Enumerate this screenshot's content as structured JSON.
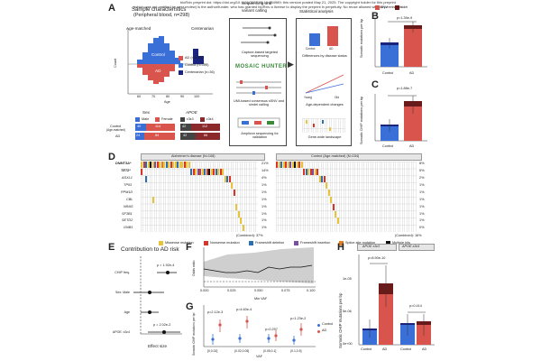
{
  "preprint": {
    "line1": "bioRxiv preprint doi: https://doi.org/10.1101/2025.05.19.654989; this version posted May 21, 2025. The copyright holder for this preprint",
    "line2": "(which was not certified by peer review) is the author/funder, who has granted bioRxiv a license to display the preprint in perpetuity. No reuse allowed without permission."
  },
  "panel_labels": [
    "A",
    "B",
    "C",
    "D",
    "E",
    "F",
    "G",
    "H"
  ],
  "panelA": {
    "title": "Sample characteristics",
    "subtitle": "(Peripheral blood, n=298)",
    "age_matched": "Age-matched",
    "centenarian": "Centenarian",
    "control_lbl": "Control",
    "ad_lbl": "AD",
    "ylabel": "Count",
    "xlabel": "Age",
    "x_ticks": [
      "60",
      "70",
      "80",
      "90",
      "100"
    ],
    "legend": [
      "AD (n=108)",
      "Control (n=154)",
      "Centenarian (n=36)"
    ],
    "sex_title": "Sex",
    "sex_legend": [
      "Male",
      "Female"
    ],
    "apoe_title": "APOE",
    "apoe_legend": [
      "ε3ε3",
      "ε3ε4"
    ],
    "row_labels": [
      "Control",
      "(Age-matched)",
      "AD"
    ],
    "sex_counts": [
      [
        "40",
        "114"
      ],
      [
        "24",
        "84"
      ]
    ],
    "apoe_counts": [
      [
        "42",
        "112"
      ],
      [
        "42",
        "66"
      ]
    ],
    "flow_head1": "Sequencing and",
    "flow_head1b": "variant calling",
    "flow_head2": "Statistical analysis",
    "flow_steps": [
      "Capture-based targeted sequencing",
      "UMI-based consensus sSNV and sindel calling",
      "Amplicon sequencing for validation"
    ],
    "stat_steps": [
      "Differences by disease status",
      "Age-dependent changes",
      "Gene-wide landscape"
    ],
    "stat_x": [
      "Control",
      "AD"
    ],
    "stat_age": [
      "Young",
      "Old"
    ],
    "logo": "MOSAIC HUNTER"
  },
  "panelB": {
    "ylabel": "Somatic mutations per bp",
    "pval": "p=1.35e-9",
    "legend": [
      "SNV",
      "Indel"
    ],
    "categories": [
      "Control",
      "AD"
    ]
  },
  "panelC": {
    "ylabel": "Somatic CHIP mutations per bp",
    "pval": "p=1.88e-7",
    "categories": [
      "Control",
      "AD"
    ]
  },
  "panelD": {
    "ad_title": "Alzheimer's disease (N=108)",
    "ctrl_title": "Control (Age-matched) (N=154)",
    "genes": [
      "DNMT3A*",
      "TET2*",
      "ASXL1",
      "TP53",
      "PPM1D",
      "CBL",
      "NRAS",
      "SF3B1",
      "SETD2",
      "GNB1"
    ],
    "ad_pct": [
      "21%",
      "14%",
      "4%",
      "1%",
      "1%",
      "1%",
      "1%",
      "1%",
      "1%",
      "1%"
    ],
    "ctrl_pct": [
      "8%",
      "5%",
      "2%",
      "1%",
      "1%",
      "1%",
      "1%",
      "1%",
      "1%",
      "0%"
    ],
    "combined_ad": "(Combined): 37%",
    "combined_ctrl": "(Combined): 16%",
    "legend": [
      "Missense mutation",
      "Nonsense mutation",
      "Frameshift deletion",
      "Frameshift insertion",
      "Splice-site mutation",
      "Multiple hits"
    ],
    "legend_colors": [
      "#e8c43a",
      "#d7342a",
      "#2c6fb0",
      "#7b4fa0",
      "#e67e22",
      "#111111"
    ]
  },
  "panelE": {
    "title": "Contribution to AD risk",
    "rows": [
      "CHIP freq.",
      "Sex: Male",
      "Age",
      "APOE: ε3ε4"
    ],
    "pvals": [
      "p = 1.92e-4",
      "",
      "",
      "p = 2.02e-2"
    ],
    "xlabel": "Effect size"
  },
  "panelF": {
    "ylabel": "Odds ratio",
    "xlabel": "Min VAF",
    "x_ticks": [
      "0.000",
      "0.025",
      "0.050",
      "0.075",
      "0.100"
    ]
  },
  "panelG": {
    "ylabel": "Somatic CHIP mutations per bp",
    "xlabel": "VAF",
    "pvals": [
      "p=2.12e-3",
      "p=4.60e-4",
      "p=0.297",
      "p=1.23e-2"
    ],
    "categories": [
      "[0,0.02]",
      "(0.02,0.05]",
      "(0.05,0.1]",
      "(0.1,0.5]"
    ],
    "legend": [
      "Control",
      "AD"
    ]
  },
  "panelH": {
    "strip1": "APOE ε3ε3",
    "strip2": "APOE ε3ε4",
    "ylabel": "Somatic CHIP mutations per bp",
    "pval1": "p=8.90e-10",
    "pval2": "p=0.414",
    "y_ticks": [
      "0e+00",
      "5e-06",
      "1e-05"
    ],
    "categories": [
      "Control",
      "AD"
    ]
  },
  "colors": {
    "control": "#3b6fd8",
    "ad": "#d9544d",
    "centenarian": "#1a237e",
    "indel": "#6b1a1a",
    "missense": "#e8c43a"
  }
}
